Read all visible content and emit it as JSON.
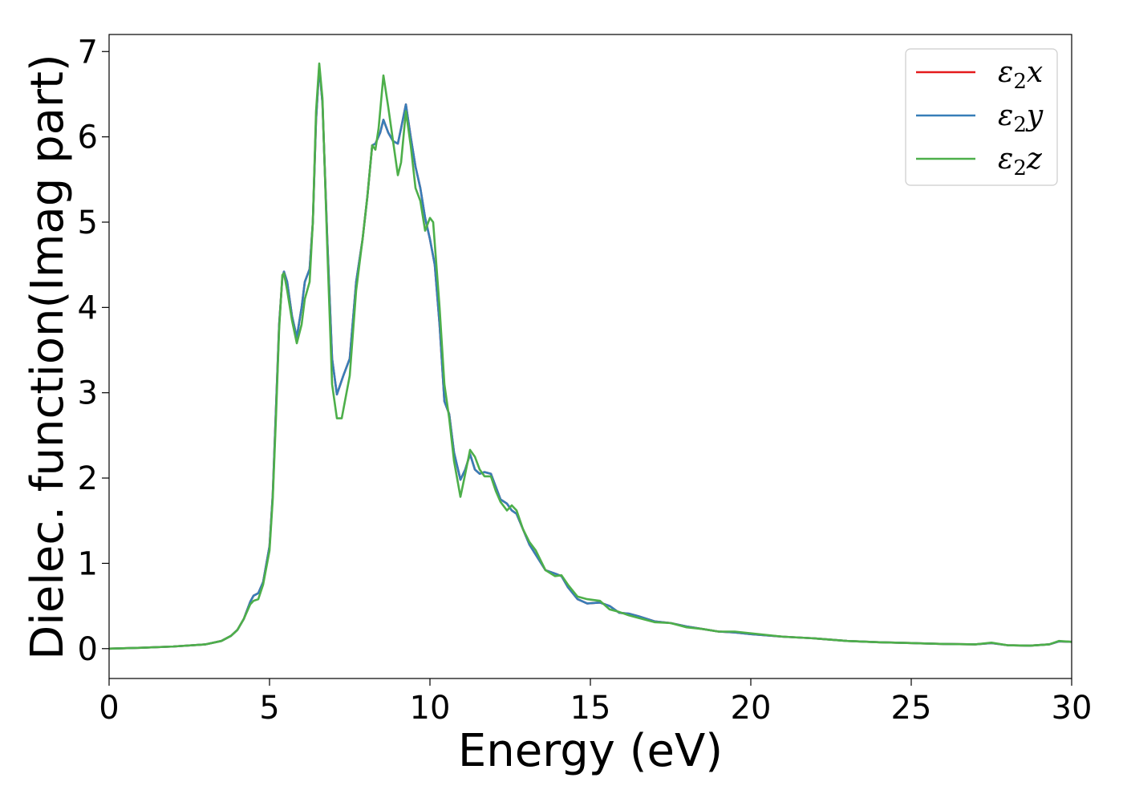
{
  "chart_data": {
    "type": "line",
    "title": "",
    "xlabel": "Energy (eV)",
    "ylabel": "Dielec. function(Imag part)",
    "xlim": [
      0,
      30
    ],
    "ylim": [
      -0.35,
      7.2
    ],
    "xticks": [
      0,
      5,
      10,
      15,
      20,
      25,
      30
    ],
    "yticks": [
      0,
      1,
      2,
      3,
      4,
      5,
      6,
      7
    ],
    "grid": false,
    "legend_position": "top-right",
    "series": [
      {
        "name": "ε₂x",
        "legend_base": "ε",
        "legend_sub": "2",
        "legend_var": "x",
        "color": "#e41a1c",
        "points": [
          [
            0,
            0.0
          ],
          [
            1,
            0.01
          ],
          [
            2,
            0.025
          ],
          [
            3,
            0.05
          ],
          [
            3.5,
            0.09
          ],
          [
            3.8,
            0.15
          ],
          [
            4.0,
            0.22
          ],
          [
            4.2,
            0.35
          ],
          [
            4.4,
            0.55
          ],
          [
            4.5,
            0.62
          ],
          [
            4.65,
            0.65
          ],
          [
            4.8,
            0.78
          ],
          [
            5.0,
            1.2
          ],
          [
            5.1,
            1.8
          ],
          [
            5.2,
            2.8
          ],
          [
            5.3,
            3.8
          ],
          [
            5.4,
            4.35
          ],
          [
            5.45,
            4.42
          ],
          [
            5.55,
            4.3
          ],
          [
            5.7,
            3.9
          ],
          [
            5.85,
            3.65
          ],
          [
            6.0,
            4.0
          ],
          [
            6.1,
            4.3
          ],
          [
            6.25,
            4.45
          ],
          [
            6.35,
            5.0
          ],
          [
            6.45,
            6.2
          ],
          [
            6.55,
            6.82
          ],
          [
            6.65,
            6.4
          ],
          [
            6.8,
            4.8
          ],
          [
            6.95,
            3.4
          ],
          [
            7.1,
            2.98
          ],
          [
            7.3,
            3.2
          ],
          [
            7.5,
            3.4
          ],
          [
            7.7,
            4.3
          ],
          [
            7.9,
            4.8
          ],
          [
            8.05,
            5.3
          ],
          [
            8.2,
            5.9
          ],
          [
            8.3,
            5.92
          ],
          [
            8.45,
            6.05
          ],
          [
            8.55,
            6.2
          ],
          [
            8.7,
            6.05
          ],
          [
            8.85,
            5.95
          ],
          [
            9.0,
            5.92
          ],
          [
            9.1,
            6.1
          ],
          [
            9.25,
            6.38
          ],
          [
            9.4,
            6.0
          ],
          [
            9.55,
            5.65
          ],
          [
            9.7,
            5.4
          ],
          [
            9.85,
            5.05
          ],
          [
            10.0,
            4.8
          ],
          [
            10.15,
            4.5
          ],
          [
            10.3,
            3.8
          ],
          [
            10.45,
            2.9
          ],
          [
            10.6,
            2.75
          ],
          [
            10.75,
            2.3
          ],
          [
            10.95,
            1.98
          ],
          [
            11.1,
            2.1
          ],
          [
            11.25,
            2.28
          ],
          [
            11.4,
            2.1
          ],
          [
            11.55,
            2.05
          ],
          [
            11.7,
            2.07
          ],
          [
            11.9,
            2.05
          ],
          [
            12.05,
            1.9
          ],
          [
            12.2,
            1.75
          ],
          [
            12.4,
            1.7
          ],
          [
            12.55,
            1.62
          ],
          [
            12.7,
            1.58
          ],
          [
            12.9,
            1.4
          ],
          [
            13.1,
            1.22
          ],
          [
            13.3,
            1.1
          ],
          [
            13.6,
            0.92
          ],
          [
            13.9,
            0.88
          ],
          [
            14.1,
            0.85
          ],
          [
            14.3,
            0.72
          ],
          [
            14.6,
            0.58
          ],
          [
            14.9,
            0.53
          ],
          [
            15.3,
            0.54
          ],
          [
            15.6,
            0.5
          ],
          [
            15.9,
            0.42
          ],
          [
            16.2,
            0.41
          ],
          [
            16.5,
            0.38
          ],
          [
            17.0,
            0.32
          ],
          [
            17.5,
            0.3
          ],
          [
            18.0,
            0.26
          ],
          [
            18.5,
            0.23
          ],
          [
            19.0,
            0.2
          ],
          [
            19.5,
            0.19
          ],
          [
            20.0,
            0.17
          ],
          [
            21.0,
            0.14
          ],
          [
            22.0,
            0.12
          ],
          [
            23.0,
            0.09
          ],
          [
            24.0,
            0.075
          ],
          [
            25.0,
            0.065
          ],
          [
            26.0,
            0.055
          ],
          [
            27.0,
            0.05
          ],
          [
            27.5,
            0.065
          ],
          [
            28.0,
            0.04
          ],
          [
            28.7,
            0.035
          ],
          [
            29.3,
            0.05
          ],
          [
            29.6,
            0.085
          ],
          [
            30.0,
            0.08
          ]
        ]
      },
      {
        "name": "ε₂y",
        "legend_base": "ε",
        "legend_sub": "2",
        "legend_var": "y",
        "color": "#377eb8",
        "points": [
          [
            0,
            0.0
          ],
          [
            1,
            0.01
          ],
          [
            2,
            0.025
          ],
          [
            3,
            0.05
          ],
          [
            3.5,
            0.09
          ],
          [
            3.8,
            0.15
          ],
          [
            4.0,
            0.22
          ],
          [
            4.2,
            0.35
          ],
          [
            4.4,
            0.55
          ],
          [
            4.5,
            0.62
          ],
          [
            4.65,
            0.65
          ],
          [
            4.8,
            0.78
          ],
          [
            5.0,
            1.2
          ],
          [
            5.1,
            1.8
          ],
          [
            5.2,
            2.8
          ],
          [
            5.3,
            3.8
          ],
          [
            5.4,
            4.35
          ],
          [
            5.45,
            4.42
          ],
          [
            5.55,
            4.3
          ],
          [
            5.7,
            3.9
          ],
          [
            5.85,
            3.65
          ],
          [
            6.0,
            4.0
          ],
          [
            6.1,
            4.3
          ],
          [
            6.25,
            4.45
          ],
          [
            6.35,
            5.0
          ],
          [
            6.45,
            6.2
          ],
          [
            6.55,
            6.82
          ],
          [
            6.65,
            6.4
          ],
          [
            6.8,
            4.8
          ],
          [
            6.95,
            3.4
          ],
          [
            7.1,
            2.98
          ],
          [
            7.3,
            3.2
          ],
          [
            7.5,
            3.4
          ],
          [
            7.7,
            4.3
          ],
          [
            7.9,
            4.8
          ],
          [
            8.05,
            5.3
          ],
          [
            8.2,
            5.9
          ],
          [
            8.3,
            5.92
          ],
          [
            8.45,
            6.05
          ],
          [
            8.55,
            6.2
          ],
          [
            8.7,
            6.05
          ],
          [
            8.85,
            5.95
          ],
          [
            9.0,
            5.92
          ],
          [
            9.1,
            6.1
          ],
          [
            9.25,
            6.38
          ],
          [
            9.4,
            6.0
          ],
          [
            9.55,
            5.65
          ],
          [
            9.7,
            5.4
          ],
          [
            9.85,
            5.05
          ],
          [
            10.0,
            4.8
          ],
          [
            10.15,
            4.5
          ],
          [
            10.3,
            3.8
          ],
          [
            10.45,
            2.9
          ],
          [
            10.6,
            2.75
          ],
          [
            10.75,
            2.3
          ],
          [
            10.95,
            1.98
          ],
          [
            11.1,
            2.1
          ],
          [
            11.25,
            2.28
          ],
          [
            11.4,
            2.1
          ],
          [
            11.55,
            2.05
          ],
          [
            11.7,
            2.07
          ],
          [
            11.9,
            2.05
          ],
          [
            12.05,
            1.9
          ],
          [
            12.2,
            1.75
          ],
          [
            12.4,
            1.7
          ],
          [
            12.55,
            1.62
          ],
          [
            12.7,
            1.58
          ],
          [
            12.9,
            1.4
          ],
          [
            13.1,
            1.22
          ],
          [
            13.3,
            1.1
          ],
          [
            13.6,
            0.92
          ],
          [
            13.9,
            0.88
          ],
          [
            14.1,
            0.85
          ],
          [
            14.3,
            0.72
          ],
          [
            14.6,
            0.58
          ],
          [
            14.9,
            0.53
          ],
          [
            15.3,
            0.54
          ],
          [
            15.6,
            0.5
          ],
          [
            15.9,
            0.42
          ],
          [
            16.2,
            0.41
          ],
          [
            16.5,
            0.38
          ],
          [
            17.0,
            0.32
          ],
          [
            17.5,
            0.3
          ],
          [
            18.0,
            0.26
          ],
          [
            18.5,
            0.23
          ],
          [
            19.0,
            0.2
          ],
          [
            19.5,
            0.19
          ],
          [
            20.0,
            0.17
          ],
          [
            21.0,
            0.14
          ],
          [
            22.0,
            0.12
          ],
          [
            23.0,
            0.09
          ],
          [
            24.0,
            0.075
          ],
          [
            25.0,
            0.065
          ],
          [
            26.0,
            0.055
          ],
          [
            27.0,
            0.05
          ],
          [
            27.5,
            0.065
          ],
          [
            28.0,
            0.04
          ],
          [
            28.7,
            0.035
          ],
          [
            29.3,
            0.05
          ],
          [
            29.6,
            0.085
          ],
          [
            30.0,
            0.08
          ]
        ]
      },
      {
        "name": "ε₂z",
        "legend_base": "ε",
        "legend_sub": "2",
        "legend_var": "z",
        "color": "#4daf4a",
        "points": [
          [
            0,
            0.0
          ],
          [
            1,
            0.01
          ],
          [
            2,
            0.025
          ],
          [
            3,
            0.05
          ],
          [
            3.5,
            0.09
          ],
          [
            3.8,
            0.15
          ],
          [
            4.0,
            0.22
          ],
          [
            4.2,
            0.35
          ],
          [
            4.4,
            0.52
          ],
          [
            4.5,
            0.56
          ],
          [
            4.65,
            0.58
          ],
          [
            4.8,
            0.75
          ],
          [
            5.0,
            1.15
          ],
          [
            5.1,
            1.75
          ],
          [
            5.2,
            2.7
          ],
          [
            5.3,
            3.75
          ],
          [
            5.4,
            4.38
          ],
          [
            5.45,
            4.4
          ],
          [
            5.55,
            4.2
          ],
          [
            5.7,
            3.85
          ],
          [
            5.85,
            3.58
          ],
          [
            6.0,
            3.8
          ],
          [
            6.1,
            4.1
          ],
          [
            6.25,
            4.3
          ],
          [
            6.35,
            5.0
          ],
          [
            6.45,
            6.3
          ],
          [
            6.55,
            6.86
          ],
          [
            6.65,
            6.45
          ],
          [
            6.8,
            4.7
          ],
          [
            6.95,
            3.1
          ],
          [
            7.1,
            2.7
          ],
          [
            7.25,
            2.7
          ],
          [
            7.5,
            3.2
          ],
          [
            7.7,
            4.2
          ],
          [
            7.9,
            4.8
          ],
          [
            8.05,
            5.3
          ],
          [
            8.2,
            5.9
          ],
          [
            8.3,
            5.85
          ],
          [
            8.4,
            6.1
          ],
          [
            8.55,
            6.72
          ],
          [
            8.7,
            6.35
          ],
          [
            8.85,
            5.95
          ],
          [
            9.0,
            5.55
          ],
          [
            9.1,
            5.7
          ],
          [
            9.25,
            6.3
          ],
          [
            9.4,
            5.9
          ],
          [
            9.55,
            5.4
          ],
          [
            9.7,
            5.25
          ],
          [
            9.85,
            4.9
          ],
          [
            10.0,
            5.05
          ],
          [
            10.1,
            5.0
          ],
          [
            10.3,
            4.0
          ],
          [
            10.45,
            3.1
          ],
          [
            10.6,
            2.7
          ],
          [
            10.75,
            2.2
          ],
          [
            10.95,
            1.78
          ],
          [
            11.1,
            2.05
          ],
          [
            11.25,
            2.33
          ],
          [
            11.4,
            2.25
          ],
          [
            11.55,
            2.1
          ],
          [
            11.7,
            2.02
          ],
          [
            11.9,
            2.02
          ],
          [
            12.05,
            1.85
          ],
          [
            12.2,
            1.72
          ],
          [
            12.4,
            1.62
          ],
          [
            12.55,
            1.68
          ],
          [
            12.7,
            1.62
          ],
          [
            12.9,
            1.4
          ],
          [
            13.1,
            1.25
          ],
          [
            13.3,
            1.15
          ],
          [
            13.6,
            0.92
          ],
          [
            13.9,
            0.85
          ],
          [
            14.1,
            0.86
          ],
          [
            14.3,
            0.75
          ],
          [
            14.6,
            0.61
          ],
          [
            14.9,
            0.58
          ],
          [
            15.3,
            0.56
          ],
          [
            15.6,
            0.46
          ],
          [
            15.9,
            0.43
          ],
          [
            16.2,
            0.39
          ],
          [
            16.5,
            0.36
          ],
          [
            17.0,
            0.31
          ],
          [
            17.5,
            0.3
          ],
          [
            18.0,
            0.25
          ],
          [
            18.5,
            0.23
          ],
          [
            19.0,
            0.2
          ],
          [
            19.5,
            0.2
          ],
          [
            20.0,
            0.18
          ],
          [
            21.0,
            0.14
          ],
          [
            22.0,
            0.12
          ],
          [
            23.0,
            0.09
          ],
          [
            24.0,
            0.075
          ],
          [
            25.0,
            0.065
          ],
          [
            26.0,
            0.055
          ],
          [
            27.0,
            0.05
          ],
          [
            27.5,
            0.07
          ],
          [
            28.0,
            0.04
          ],
          [
            28.7,
            0.035
          ],
          [
            29.3,
            0.05
          ],
          [
            29.6,
            0.09
          ],
          [
            30.0,
            0.08
          ]
        ]
      }
    ]
  }
}
